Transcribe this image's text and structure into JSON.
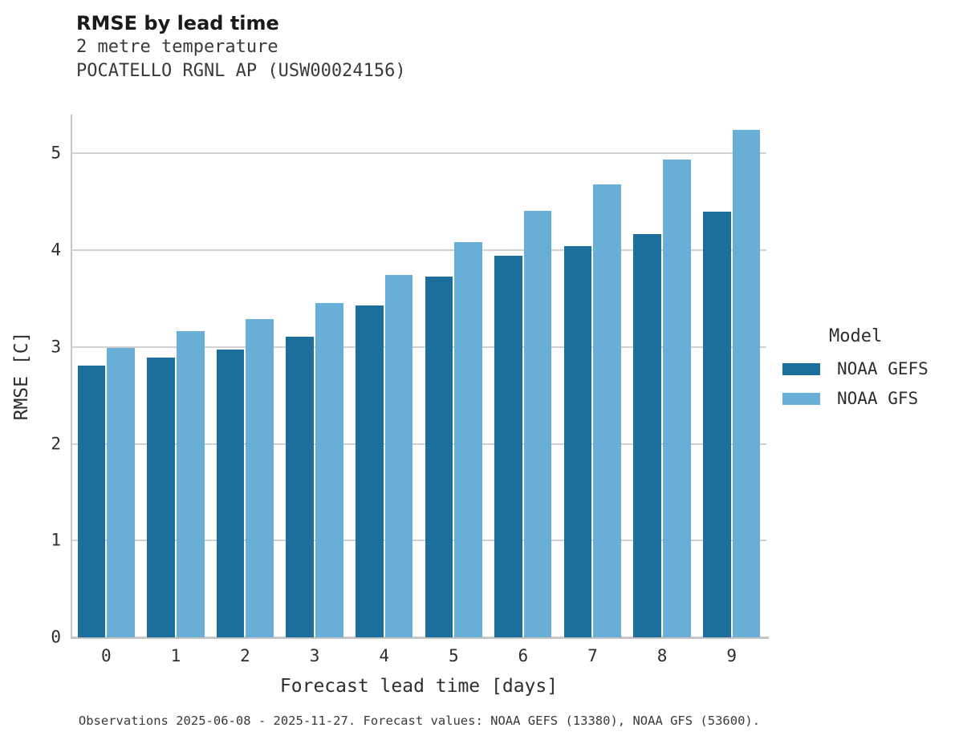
{
  "header": {
    "title": "RMSE by lead time",
    "subtitle1": "2 metre temperature",
    "subtitle2": "POCATELLO RGNL AP (USW00024156)"
  },
  "legend": {
    "title": "Model",
    "items": [
      {
        "label": "NOAA GEFS",
        "color": "#1c6e9c"
      },
      {
        "label": "NOAA GFS",
        "color": "#69aed6"
      }
    ]
  },
  "footer": {
    "text": "Observations 2025-06-08 - 2025-11-27. Forecast values: NOAA GEFS (13380), NOAA GFS (53600)."
  },
  "chart_data": {
    "type": "bar",
    "title": "RMSE by lead time",
    "subtitle": [
      "2 metre temperature",
      "POCATELLO RGNL AP (USW00024156)"
    ],
    "categories": [
      "0",
      "1",
      "2",
      "3",
      "4",
      "5",
      "6",
      "7",
      "8",
      "9"
    ],
    "series": [
      {
        "name": "NOAA GEFS",
        "color": "#1c6e9c",
        "values": [
          2.81,
          2.89,
          2.97,
          3.11,
          3.43,
          3.73,
          3.94,
          4.04,
          4.17,
          4.4
        ]
      },
      {
        "name": "NOAA GFS",
        "color": "#69aed6",
        "values": [
          2.99,
          3.16,
          3.29,
          3.45,
          3.74,
          4.08,
          4.41,
          4.68,
          4.94,
          5.24
        ]
      }
    ],
    "xlabel": "Forecast lead time [days]",
    "ylabel": "RMSE [C]",
    "ylim": [
      0,
      5.4
    ],
    "yticks": [
      0,
      1,
      2,
      3,
      4,
      5
    ],
    "grid": "horizontal",
    "legend_title": "Model",
    "legend_position": "right",
    "caption": "Observations 2025-06-08 - 2025-11-27. Forecast values: NOAA GEFS (13380), NOAA GFS (53600)."
  }
}
